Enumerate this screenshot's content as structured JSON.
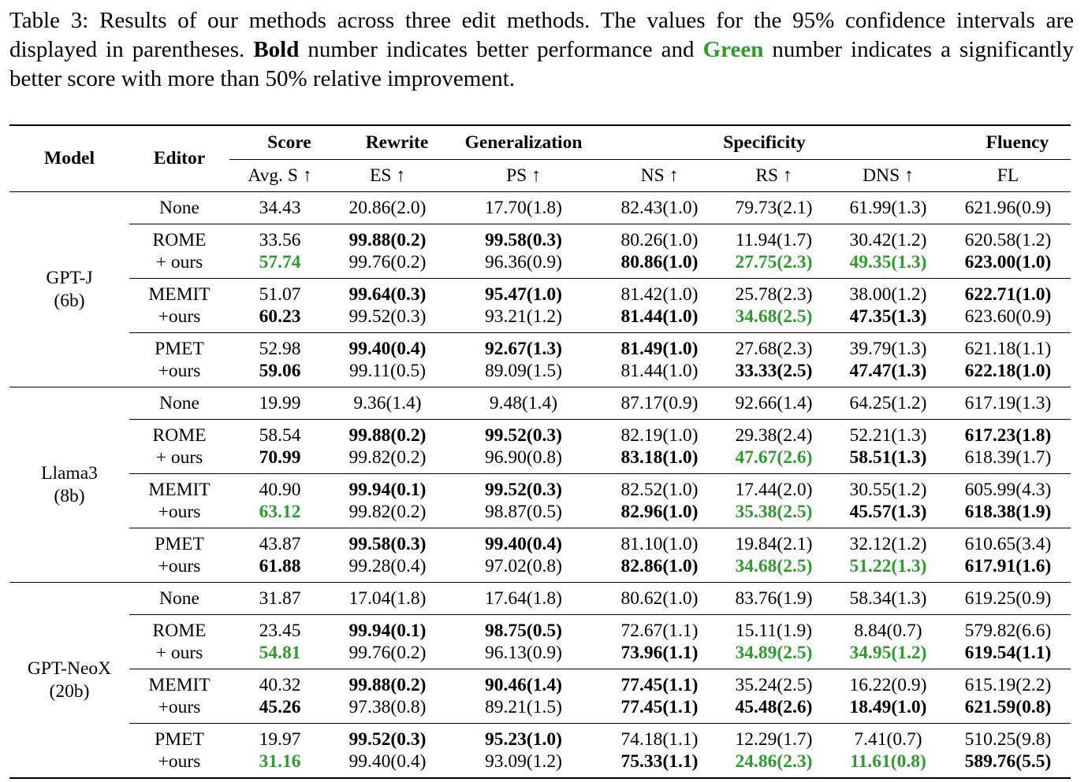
{
  "caption": {
    "prefix": "Table 3: Results of our methods across three edit methods. The values for the 95% confidence intervals are displayed in parentheses.",
    "bold_word": "Bold",
    "mid": "number indicates better performance and",
    "green_word": "Green",
    "suffix": "number indicates a significantly better score with more than 50% relative improvement."
  },
  "headers": {
    "model": "Model",
    "editor": "Editor",
    "score": "Score",
    "rewrite": "Rewrite",
    "generalization": "Generalization",
    "specificity": "Specificity",
    "fluency": "Fluency",
    "avg_s": "Avg. S ↑",
    "es": "ES ↑",
    "ps": "PS ↑",
    "ns": "NS ↑",
    "rs": "RS ↑",
    "dns": "DNS ↑",
    "fl": "FL"
  },
  "groups": [
    {
      "model": "GPT-J",
      "size": "(6b)",
      "none": [
        "34.43",
        "20.86(2.0)",
        "17.70(1.8)",
        "82.43(1.0)",
        "79.73(2.1)",
        "61.99(1.3)",
        "621.96(0.9)"
      ],
      "editors": [
        {
          "a_label": "ROME",
          "b_label": "+ ours",
          "a": [
            [
              "33.56",
              ""
            ],
            [
              "99.88(0.2)",
              "b"
            ],
            [
              "99.58(0.3)",
              "b"
            ],
            [
              "80.26(1.0)",
              ""
            ],
            [
              "11.94(1.7)",
              ""
            ],
            [
              "30.42(1.2)",
              ""
            ],
            [
              "620.58(1.2)",
              ""
            ]
          ],
          "b": [
            [
              "57.74",
              "g"
            ],
            [
              "99.76(0.2)",
              ""
            ],
            [
              "96.36(0.9)",
              ""
            ],
            [
              "80.86(1.0)",
              "b"
            ],
            [
              "27.75(2.3)",
              "g"
            ],
            [
              "49.35(1.3)",
              "g"
            ],
            [
              "623.00(1.0)",
              "b"
            ]
          ]
        },
        {
          "a_label": "MEMIT",
          "b_label": "+ours",
          "a": [
            [
              "51.07",
              ""
            ],
            [
              "99.64(0.3)",
              "b"
            ],
            [
              "95.47(1.0)",
              "b"
            ],
            [
              "81.42(1.0)",
              ""
            ],
            [
              "25.78(2.3)",
              ""
            ],
            [
              "38.00(1.2)",
              ""
            ],
            [
              "622.71(1.0)",
              "b"
            ]
          ],
          "b": [
            [
              "60.23",
              "b"
            ],
            [
              "99.52(0.3)",
              ""
            ],
            [
              "93.21(1.2)",
              ""
            ],
            [
              "81.44(1.0)",
              "b"
            ],
            [
              "34.68(2.5)",
              "g"
            ],
            [
              "47.35(1.3)",
              "b"
            ],
            [
              "623.60(0.9)",
              ""
            ]
          ]
        },
        {
          "a_label": "PMET",
          "b_label": "+ours",
          "a": [
            [
              "52.98",
              ""
            ],
            [
              "99.40(0.4)",
              "b"
            ],
            [
              "92.67(1.3)",
              "b"
            ],
            [
              "81.49(1.0)",
              "b"
            ],
            [
              "27.68(2.3)",
              ""
            ],
            [
              "39.79(1.3)",
              ""
            ],
            [
              "621.18(1.1)",
              ""
            ]
          ],
          "b": [
            [
              "59.06",
              "b"
            ],
            [
              "99.11(0.5)",
              ""
            ],
            [
              "89.09(1.5)",
              ""
            ],
            [
              "81.44(1.0)",
              ""
            ],
            [
              "33.33(2.5)",
              "b"
            ],
            [
              "47.47(1.3)",
              "b"
            ],
            [
              "622.18(1.0)",
              "b"
            ]
          ]
        }
      ]
    },
    {
      "model": "Llama3",
      "size": "(8b)",
      "none": [
        "19.99",
        "9.36(1.4)",
        "9.48(1.4)",
        "87.17(0.9)",
        "92.66(1.4)",
        "64.25(1.2)",
        "617.19(1.3)"
      ],
      "editors": [
        {
          "a_label": "ROME",
          "b_label": "+ ours",
          "a": [
            [
              "58.54",
              ""
            ],
            [
              "99.88(0.2)",
              "b"
            ],
            [
              "99.52(0.3)",
              "b"
            ],
            [
              "82.19(1.0)",
              ""
            ],
            [
              "29.38(2.4)",
              ""
            ],
            [
              "52.21(1.3)",
              ""
            ],
            [
              "617.23(1.8)",
              "b"
            ]
          ],
          "b": [
            [
              "70.99",
              "b"
            ],
            [
              "99.82(0.2)",
              ""
            ],
            [
              "96.90(0.8)",
              ""
            ],
            [
              "83.18(1.0)",
              "b"
            ],
            [
              "47.67(2.6)",
              "g"
            ],
            [
              "58.51(1.3)",
              "b"
            ],
            [
              "618.39(1.7)",
              ""
            ]
          ]
        },
        {
          "a_label": "MEMIT",
          "b_label": "+ours",
          "a": [
            [
              "40.90",
              ""
            ],
            [
              "99.94(0.1)",
              "b"
            ],
            [
              "99.52(0.3)",
              "b"
            ],
            [
              "82.52(1.0)",
              ""
            ],
            [
              "17.44(2.0)",
              ""
            ],
            [
              "30.55(1.2)",
              ""
            ],
            [
              "605.99(4.3)",
              ""
            ]
          ],
          "b": [
            [
              "63.12",
              "g"
            ],
            [
              "99.82(0.2)",
              ""
            ],
            [
              "98.87(0.5)",
              ""
            ],
            [
              "82.96(1.0)",
              "b"
            ],
            [
              "35.38(2.5)",
              "g"
            ],
            [
              "45.57(1.3)",
              "b"
            ],
            [
              "618.38(1.9)",
              "b"
            ]
          ]
        },
        {
          "a_label": "PMET",
          "b_label": "+ours",
          "a": [
            [
              "43.87",
              ""
            ],
            [
              "99.58(0.3)",
              "b"
            ],
            [
              "99.40(0.4)",
              "b"
            ],
            [
              "81.10(1.0)",
              ""
            ],
            [
              "19.84(2.1)",
              ""
            ],
            [
              "32.12(1.2)",
              ""
            ],
            [
              "610.65(3.4)",
              ""
            ]
          ],
          "b": [
            [
              "61.88",
              "b"
            ],
            [
              "99.28(0.4)",
              ""
            ],
            [
              "97.02(0.8)",
              ""
            ],
            [
              "82.86(1.0)",
              "b"
            ],
            [
              "34.68(2.5)",
              "g"
            ],
            [
              "51.22(1.3)",
              "g"
            ],
            [
              "617.91(1.6)",
              "b"
            ]
          ]
        }
      ]
    },
    {
      "model": "GPT-NeoX",
      "size": "(20b)",
      "none": [
        "31.87",
        "17.04(1.8)",
        "17.64(1.8)",
        "80.62(1.0)",
        "83.76(1.9)",
        "58.34(1.3)",
        "619.25(0.9)"
      ],
      "editors": [
        {
          "a_label": "ROME",
          "b_label": "+ ours",
          "a": [
            [
              "23.45",
              ""
            ],
            [
              "99.94(0.1)",
              "b"
            ],
            [
              "98.75(0.5)",
              "b"
            ],
            [
              "72.67(1.1)",
              ""
            ],
            [
              "15.11(1.9)",
              ""
            ],
            [
              "8.84(0.7)",
              ""
            ],
            [
              "579.82(6.6)",
              ""
            ]
          ],
          "b": [
            [
              "54.81",
              "g"
            ],
            [
              "99.76(0.2)",
              ""
            ],
            [
              "96.13(0.9)",
              ""
            ],
            [
              "73.96(1.1)",
              "b"
            ],
            [
              "34.89(2.5)",
              "g"
            ],
            [
              "34.95(1.2)",
              "g"
            ],
            [
              "619.54(1.1)",
              "b"
            ]
          ]
        },
        {
          "a_label": "MEMIT",
          "b_label": "+ours",
          "a": [
            [
              "40.32",
              ""
            ],
            [
              "99.88(0.2)",
              "b"
            ],
            [
              "90.46(1.4)",
              "b"
            ],
            [
              "77.45(1.1)",
              "b"
            ],
            [
              "35.24(2.5)",
              ""
            ],
            [
              "16.22(0.9)",
              ""
            ],
            [
              "615.19(2.2)",
              ""
            ]
          ],
          "b": [
            [
              "45.26",
              "b"
            ],
            [
              "97.38(0.8)",
              ""
            ],
            [
              "89.21(1.5)",
              ""
            ],
            [
              "77.45(1.1)",
              "b"
            ],
            [
              "45.48(2.6)",
              "b"
            ],
            [
              "18.49(1.0)",
              "b"
            ],
            [
              "621.59(0.8)",
              "b"
            ]
          ]
        },
        {
          "a_label": "PMET",
          "b_label": "+ours",
          "a": [
            [
              "19.97",
              ""
            ],
            [
              "99.52(0.3)",
              "b"
            ],
            [
              "95.23(1.0)",
              "b"
            ],
            [
              "74.18(1.1)",
              ""
            ],
            [
              "12.29(1.7)",
              ""
            ],
            [
              "7.41(0.7)",
              ""
            ],
            [
              "510.25(9.8)",
              ""
            ]
          ],
          "b": [
            [
              "31.16",
              "g"
            ],
            [
              "99.40(0.4)",
              ""
            ],
            [
              "93.09(1.2)",
              ""
            ],
            [
              "75.33(1.1)",
              "b"
            ],
            [
              "24.86(2.3)",
              "g"
            ],
            [
              "11.61(0.8)",
              "g"
            ],
            [
              "589.76(5.5)",
              "b"
            ]
          ]
        }
      ]
    }
  ]
}
